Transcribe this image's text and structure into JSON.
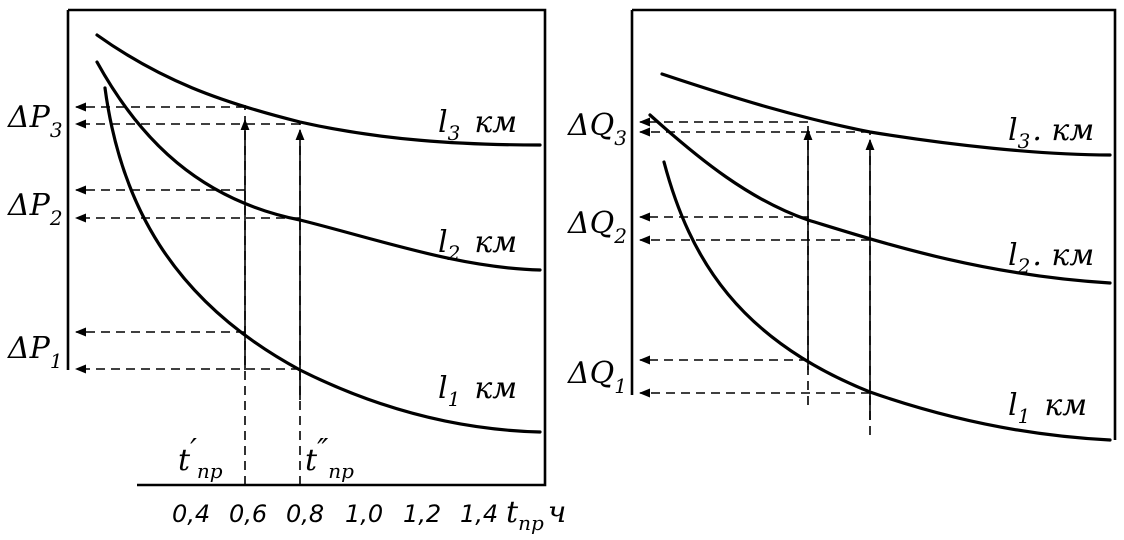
{
  "left_panel": {
    "y_labels": [
      {
        "base": "ΔP",
        "sub": "3"
      },
      {
        "base": "ΔP",
        "sub": "2"
      },
      {
        "base": "ΔP",
        "sub": "1"
      }
    ],
    "curve_labels": [
      {
        "base": "l",
        "sub": "3",
        "unit": "км"
      },
      {
        "base": "l",
        "sub": "2",
        "unit": "км"
      },
      {
        "base": "l",
        "sub": "1",
        "unit": "км"
      }
    ],
    "t_markers": [
      {
        "base": "t",
        "prime": "′",
        "sub": "пр"
      },
      {
        "base": "t",
        "prime": "″",
        "sub": "пр"
      }
    ],
    "x_ticks": [
      "0,4",
      "0,6",
      "0,8",
      "1,0",
      "1,2",
      "1,4"
    ],
    "x_axis_label": {
      "base": "t",
      "sub": "пр",
      "unit": "ч"
    }
  },
  "right_panel": {
    "y_labels": [
      {
        "base": "ΔQ",
        "sub": "3"
      },
      {
        "base": "ΔQ",
        "sub": "2"
      },
      {
        "base": "ΔQ",
        "sub": "1"
      }
    ],
    "curve_labels": [
      {
        "base": "l",
        "sub": "3",
        "unit": ". км"
      },
      {
        "base": "l",
        "sub": "2",
        "unit": ". км"
      },
      {
        "base": "l",
        "sub": "1",
        "unit": "км"
      }
    ]
  }
}
